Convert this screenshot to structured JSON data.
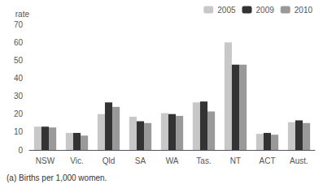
{
  "chart_data": {
    "type": "bar",
    "categories": [
      "NSW",
      "Vic.",
      "Qld",
      "SA",
      "WA",
      "Tas.",
      "NT",
      "ACT",
      "Aust."
    ],
    "series": [
      {
        "name": "2005",
        "color": "#c8c8c8",
        "values": [
          13,
          9.5,
          20,
          18.5,
          20.5,
          26.5,
          60,
          9,
          15.5
        ]
      },
      {
        "name": "2009",
        "color": "#333333",
        "values": [
          13,
          9.5,
          26.5,
          16,
          20,
          27,
          47.5,
          9.5,
          16.5
        ]
      },
      {
        "name": "2010",
        "color": "#999999",
        "values": [
          12.5,
          8,
          24,
          15,
          19,
          21.5,
          47.5,
          8.5,
          15
        ]
      }
    ],
    "ylabel": "rate",
    "ylim": [
      0,
      70
    ],
    "yticks": [
      0,
      10,
      20,
      30,
      40,
      50,
      60,
      70
    ],
    "grid": false,
    "legend": "upper right",
    "annotations": [
      "(a) Births per 1,000 women."
    ]
  }
}
